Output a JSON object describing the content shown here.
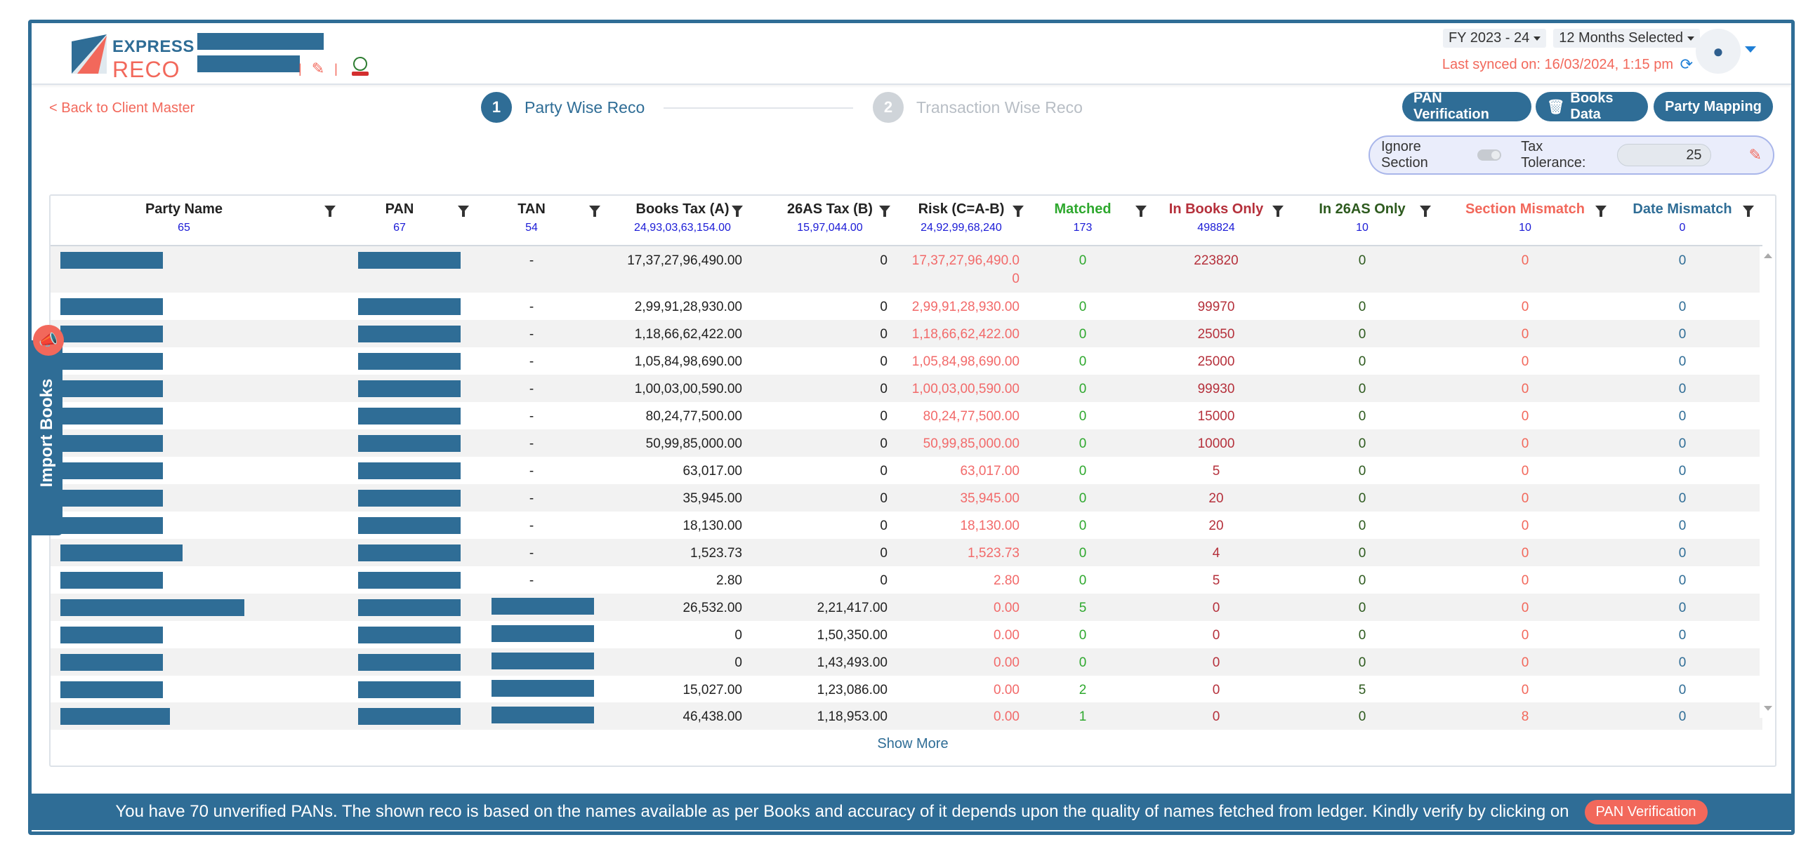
{
  "brand": {
    "line1": "EXPRESS",
    "line2": "RECO",
    "accent": "#f2685b",
    "primary": "#2f6d96"
  },
  "header": {
    "fy_select": "FY 2023 - 24",
    "months_select": "12 Months Selected",
    "last_synced": "Last synced on: 16/03/2024, 1:15 pm",
    "icons": [
      "pencil-icon",
      "gov-emblem-icon",
      "sync-icon",
      "user-icon"
    ]
  },
  "nav": {
    "back": "< Back to Client Master"
  },
  "steps": [
    {
      "num": "1",
      "label": "Party Wise Reco"
    },
    {
      "num": "2",
      "label": "Transaction Wise Reco"
    }
  ],
  "actions": {
    "pan": "PAN Verification",
    "books": "Books Data",
    "mapping": "Party Mapping"
  },
  "filters": {
    "ignore_section": "Ignore Section",
    "tax_tolerance": "Tax Tolerance:",
    "tolerance_value": "25"
  },
  "columns": [
    {
      "label": "Party Name",
      "count": "65",
      "color": "#222"
    },
    {
      "label": "PAN",
      "count": "67",
      "color": "#222"
    },
    {
      "label": "TAN",
      "count": "54",
      "color": "#222"
    },
    {
      "label": "Books Tax (A)",
      "count": "24,93,03,63,154.00",
      "color": "#222"
    },
    {
      "label": "26AS Tax (B)",
      "count": "15,97,044.00",
      "color": "#222"
    },
    {
      "label": "Risk (C=A-B)",
      "count": "24,92,99,68,240",
      "color": "#222"
    },
    {
      "label": "Matched",
      "count": "173",
      "color": "#2ea82e"
    },
    {
      "label": "In Books Only",
      "count": "498824",
      "color": "#b5303b"
    },
    {
      "label": "In 26AS Only",
      "count": "10",
      "color": "#2d5a1e"
    },
    {
      "label": "Section Mismatch",
      "count": "10",
      "color": "#f2685b"
    },
    {
      "label": "Date Mismatch",
      "count": "0",
      "color": "#2f6d96"
    }
  ],
  "rows": [
    {
      "tan": "-",
      "books": "17,37,27,96,490.00",
      "as26": "0",
      "risk": "17,37,27,96,490.0",
      "risk2": "0",
      "matched": "0",
      "books_only": "223820",
      "as26_only": "0",
      "sec": "0",
      "date": "0"
    },
    {
      "tan": "-",
      "books": "2,99,91,28,930.00",
      "as26": "0",
      "risk": "2,99,91,28,930.00",
      "matched": "0",
      "books_only": "99970",
      "as26_only": "0",
      "sec": "0",
      "date": "0"
    },
    {
      "tan": "-",
      "books": "1,18,66,62,422.00",
      "as26": "0",
      "risk": "1,18,66,62,422.00",
      "matched": "0",
      "books_only": "25050",
      "as26_only": "0",
      "sec": "0",
      "date": "0"
    },
    {
      "tan": "-",
      "books": "1,05,84,98,690.00",
      "as26": "0",
      "risk": "1,05,84,98,690.00",
      "matched": "0",
      "books_only": "25000",
      "as26_only": "0",
      "sec": "0",
      "date": "0"
    },
    {
      "tan": "-",
      "books": "1,00,03,00,590.00",
      "as26": "0",
      "risk": "1,00,03,00,590.00",
      "matched": "0",
      "books_only": "99930",
      "as26_only": "0",
      "sec": "0",
      "date": "0"
    },
    {
      "tan": "-",
      "books": "80,24,77,500.00",
      "as26": "0",
      "risk": "80,24,77,500.00",
      "matched": "0",
      "books_only": "15000",
      "as26_only": "0",
      "sec": "0",
      "date": "0"
    },
    {
      "tan": "-",
      "books": "50,99,85,000.00",
      "as26": "0",
      "risk": "50,99,85,000.00",
      "matched": "0",
      "books_only": "10000",
      "as26_only": "0",
      "sec": "0",
      "date": "0"
    },
    {
      "tan": "-",
      "books": "63,017.00",
      "as26": "0",
      "risk": "63,017.00",
      "matched": "0",
      "books_only": "5",
      "as26_only": "0",
      "sec": "0",
      "date": "0"
    },
    {
      "tan": "-",
      "books": "35,945.00",
      "as26": "0",
      "risk": "35,945.00",
      "matched": "0",
      "books_only": "20",
      "as26_only": "0",
      "sec": "0",
      "date": "0"
    },
    {
      "tan": "-",
      "books": "18,130.00",
      "as26": "0",
      "risk": "18,130.00",
      "matched": "0",
      "books_only": "20",
      "as26_only": "0",
      "sec": "0",
      "date": "0"
    },
    {
      "tan": "-",
      "books": "1,523.73",
      "as26": "0",
      "risk": "1,523.73",
      "matched": "0",
      "books_only": "4",
      "as26_only": "0",
      "sec": "0",
      "date": "0"
    },
    {
      "tan": "-",
      "books": "2.80",
      "as26": "0",
      "risk": "2.80",
      "matched": "0",
      "books_only": "5",
      "as26_only": "0",
      "sec": "0",
      "date": "0"
    },
    {
      "tan": "",
      "books": "26,532.00",
      "as26": "2,21,417.00",
      "risk": "0.00",
      "matched": "5",
      "books_only": "0",
      "as26_only": "0",
      "sec": "0",
      "date": "0"
    },
    {
      "tan": "",
      "books": "0",
      "as26": "1,50,350.00",
      "risk": "0.00",
      "matched": "0",
      "books_only": "0",
      "as26_only": "0",
      "sec": "0",
      "date": "0"
    },
    {
      "tan": "",
      "books": "0",
      "as26": "1,43,493.00",
      "risk": "0.00",
      "matched": "0",
      "books_only": "0",
      "as26_only": "0",
      "sec": "0",
      "date": "0"
    },
    {
      "tan": "",
      "books": "15,027.00",
      "as26": "1,23,086.00",
      "risk": "0.00",
      "matched": "2",
      "books_only": "0",
      "as26_only": "5",
      "sec": "0",
      "date": "0"
    },
    {
      "tan": "",
      "books": "46,438.00",
      "as26": "1,18,953.00",
      "risk": "0.00",
      "matched": "1",
      "books_only": "0",
      "as26_only": "0",
      "sec": "8",
      "date": "0"
    }
  ],
  "show_more": "Show More",
  "side_tab": "Import Books",
  "footer": {
    "message": "You have 70 unverified PANs. The shown reco is based on the names available as per Books and accuracy of it depends upon the quality of names fetched from ledger. Kindly verify by clicking on",
    "button": "PAN Verification"
  }
}
